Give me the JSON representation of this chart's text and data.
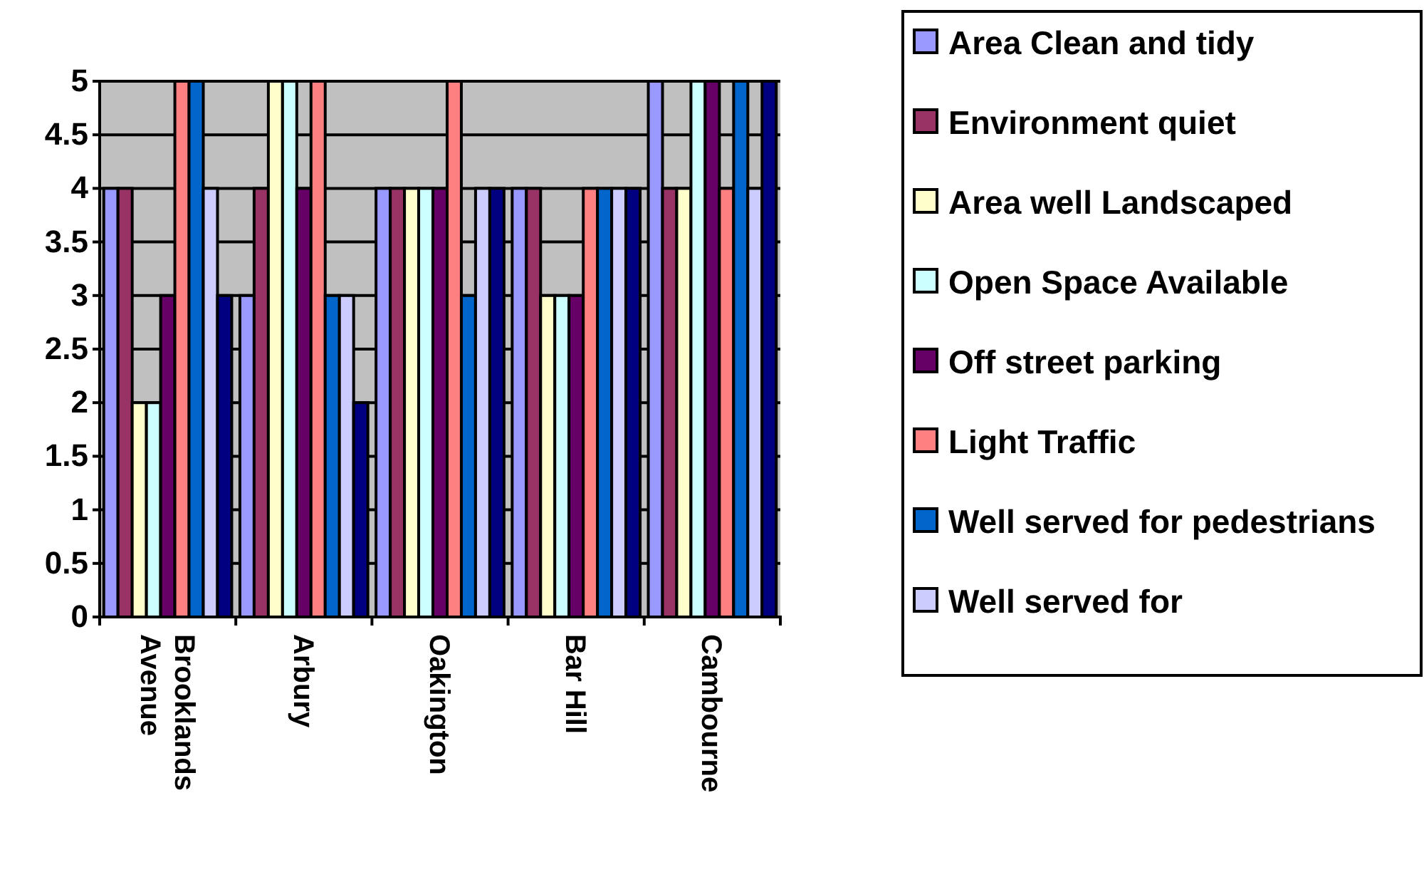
{
  "chart_data": {
    "type": "bar",
    "categories": [
      "Brooklands Avenue",
      "Arbury",
      "Oakington",
      "Bar Hill",
      "Cambourne"
    ],
    "series": [
      {
        "name": "Area Clean and tidy",
        "color": "#9999ff",
        "values": [
          4,
          3,
          4,
          4,
          5
        ]
      },
      {
        "name": "Environment quiet",
        "color": "#993366",
        "values": [
          4,
          4,
          4,
          4,
          4
        ]
      },
      {
        "name": "Area well Landscaped",
        "color": "#ffffcc",
        "values": [
          2,
          5,
          4,
          3,
          4
        ]
      },
      {
        "name": "Open Space Available",
        "color": "#ccffff",
        "values": [
          2,
          5,
          4,
          3,
          5
        ]
      },
      {
        "name": "Off street parking",
        "color": "#660066",
        "values": [
          3,
          4,
          4,
          3,
          5
        ]
      },
      {
        "name": "Light Traffic",
        "color": "#ff8080",
        "values": [
          5,
          5,
          5,
          4,
          4
        ]
      },
      {
        "name": "Well served for pedestrians",
        "color": "#0066cc",
        "values": [
          5,
          3,
          3,
          4,
          5
        ]
      },
      {
        "name": "Well served for",
        "color": "#ccccff",
        "values": [
          4,
          3,
          4,
          4,
          4
        ]
      },
      {
        "color": "#000080",
        "values": [
          3,
          2,
          4,
          4,
          5
        ]
      }
    ],
    "ylim": [
      0,
      5
    ],
    "yticks": [
      0,
      0.5,
      1,
      1.5,
      2,
      2.5,
      3,
      3.5,
      4,
      4.5,
      5
    ],
    "grid": "y",
    "legend": "right"
  }
}
